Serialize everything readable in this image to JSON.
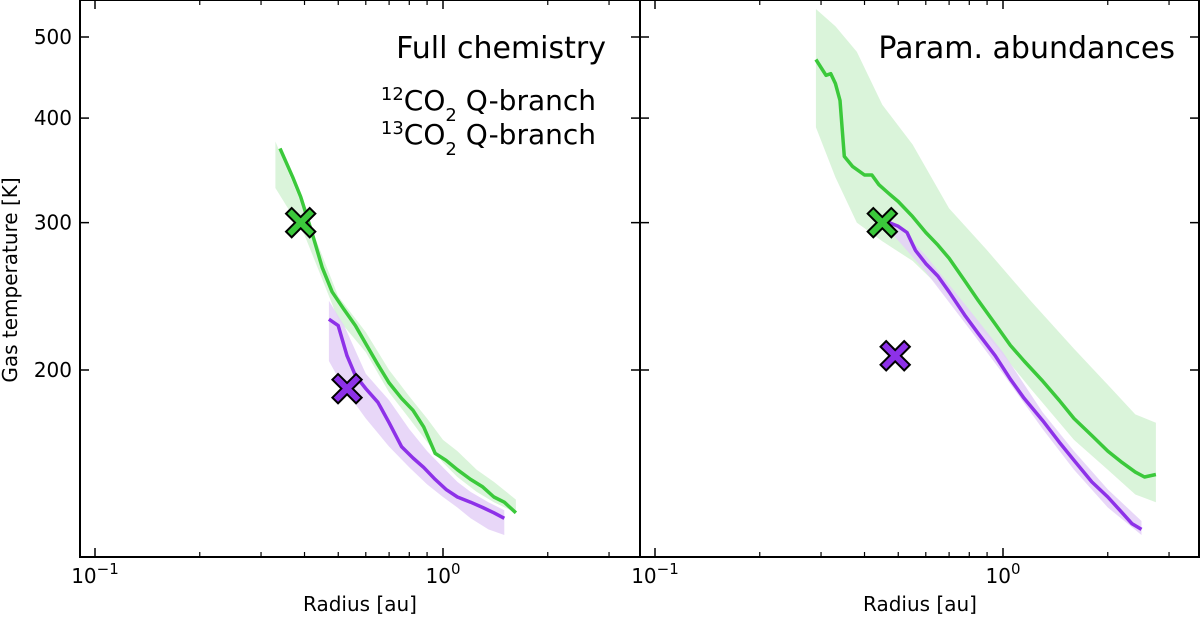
{
  "colors": {
    "green": "#3bc93b",
    "purple": "#8d31e8",
    "green_fill": "#d3f2d3",
    "purple_fill": "#e4d0f7"
  },
  "chart_data": [
    {
      "type": "line",
      "title": "Full chemistry",
      "xlabel": "Radius [au]",
      "ylabel": "Gas temperature [K]",
      "xscale": "log",
      "yscale": "log",
      "xlim": [
        0.09,
        3.8
      ],
      "ylim": [
        118,
        540
      ],
      "xticks": [
        {
          "value": 0.1,
          "base": "10",
          "exp": "−1"
        },
        {
          "value": 1.0,
          "base": "10",
          "exp": "0"
        }
      ],
      "yticks": [
        {
          "value": 200,
          "label": "200"
        },
        {
          "value": 300,
          "label": "300"
        },
        {
          "value": 400,
          "label": "400"
        },
        {
          "value": 500,
          "label": "500"
        }
      ],
      "legend": {
        "placement": "top-right",
        "entries": [
          {
            "iso": "12",
            "mol": "CO",
            "sub": "2",
            "rest": " Q-branch",
            "color": "#3bc93b"
          },
          {
            "iso": "13",
            "mol": "CO",
            "sub": "2",
            "rest": " Q-branch",
            "color": "#8d31e8"
          }
        ]
      },
      "series": [
        {
          "name": "12CO2 Q-branch",
          "color": "#3bc93b",
          "x": [
            0.34,
            0.37,
            0.39,
            0.42,
            0.45,
            0.48,
            0.52,
            0.56,
            0.6,
            0.65,
            0.7,
            0.76,
            0.82,
            0.88,
            0.95,
            1.02,
            1.1,
            1.2,
            1.3,
            1.4,
            1.5,
            1.62
          ],
          "y": [
            368,
            340,
            322,
            292,
            265,
            248,
            236,
            226,
            215,
            203,
            193,
            185,
            179,
            171,
            159,
            156,
            152,
            148,
            145,
            141,
            139,
            135
          ],
          "band_x": [
            0.33,
            0.4,
            0.5,
            0.6,
            0.7,
            0.8,
            0.9,
            1.0,
            1.1,
            1.25,
            1.4,
            1.62
          ],
          "band_lo": [
            330,
            290,
            230,
            210,
            188,
            175,
            164,
            155,
            149,
            143,
            139,
            135
          ],
          "band_hi": [
            375,
            310,
            245,
            222,
            200,
            186,
            175,
            165,
            160,
            152,
            147,
            140
          ]
        },
        {
          "name": "13CO2 Q-branch",
          "color": "#8d31e8",
          "x": [
            0.47,
            0.5,
            0.53,
            0.56,
            0.6,
            0.65,
            0.7,
            0.76,
            0.82,
            0.88,
            0.95,
            1.02,
            1.1,
            1.2,
            1.3,
            1.4,
            1.5
          ],
          "y": [
            230,
            226,
            208,
            197,
            190,
            183,
            173,
            162,
            157,
            153,
            148,
            144,
            141,
            139,
            137,
            135,
            133
          ],
          "band_x": [
            0.47,
            0.52,
            0.6,
            0.7,
            0.8,
            0.9,
            1.0,
            1.1,
            1.2,
            1.35,
            1.5
          ],
          "band_lo": [
            205,
            190,
            175,
            162,
            153,
            146,
            141,
            137,
            133,
            129,
            127
          ],
          "band_hi": [
            242,
            226,
            198,
            184,
            170,
            160,
            153,
            147,
            143,
            139,
            136
          ]
        }
      ],
      "markers": [
        {
          "series": "12CO2 Q-branch",
          "x": 0.39,
          "y": 300,
          "shape": "X",
          "color": "#3bc93b"
        },
        {
          "series": "13CO2 Q-branch",
          "x": 0.53,
          "y": 190,
          "shape": "X",
          "color": "#8d31e8"
        }
      ]
    },
    {
      "type": "line",
      "title": "Param. abundances",
      "xlabel": "Radius [au]",
      "ylabel": "",
      "xscale": "log",
      "yscale": "log",
      "xlim": [
        0.09,
        3.8
      ],
      "ylim": [
        118,
        540
      ],
      "xticks": [
        {
          "value": 0.1,
          "base": "10",
          "exp": "−1"
        },
        {
          "value": 1.0,
          "base": "10",
          "exp": "0"
        }
      ],
      "yticks": [
        {
          "value": 200,
          "label": ""
        },
        {
          "value": 300,
          "label": ""
        },
        {
          "value": 400,
          "label": ""
        },
        {
          "value": 500,
          "label": ""
        }
      ],
      "series": [
        {
          "name": "12CO2 Q-branch",
          "color": "#3bc93b",
          "x": [
            0.29,
            0.31,
            0.32,
            0.33,
            0.34,
            0.35,
            0.37,
            0.4,
            0.42,
            0.44,
            0.47,
            0.5,
            0.55,
            0.6,
            0.65,
            0.7,
            0.78,
            0.85,
            0.95,
            1.05,
            1.15,
            1.3,
            1.45,
            1.6,
            1.8,
            2.0,
            2.2,
            2.4,
            2.55,
            2.75
          ],
          "y": [
            470,
            450,
            452,
            440,
            420,
            360,
            350,
            342,
            342,
            333,
            325,
            318,
            305,
            292,
            282,
            272,
            255,
            242,
            227,
            214,
            205,
            194,
            184,
            175,
            167,
            160,
            155,
            151,
            149,
            150
          ],
          "band_x": [
            0.29,
            0.33,
            0.38,
            0.45,
            0.55,
            0.7,
            0.9,
            1.2,
            1.6,
            2.0,
            2.4,
            2.75
          ],
          "band_lo": [
            390,
            340,
            300,
            285,
            270,
            245,
            220,
            190,
            165,
            152,
            142,
            139
          ],
          "band_hi": [
            540,
            515,
            480,
            415,
            372,
            312,
            278,
            242,
            212,
            192,
            177,
            173
          ]
        },
        {
          "name": "13CO2 Q-branch",
          "color": "#8d31e8",
          "x": [
            0.47,
            0.5,
            0.53,
            0.56,
            0.6,
            0.65,
            0.7,
            0.78,
            0.85,
            0.95,
            1.05,
            1.15,
            1.3,
            1.45,
            1.6,
            1.8,
            2.0,
            2.2,
            2.35,
            2.5
          ],
          "y": [
            300,
            297,
            292,
            278,
            268,
            259,
            248,
            232,
            221,
            208,
            195,
            185,
            174,
            164,
            156,
            147,
            141,
            135,
            131,
            129
          ],
          "band_x": [
            0.47,
            0.6,
            0.8,
            1.0,
            1.3,
            1.6,
            2.0,
            2.5
          ],
          "band_lo": [
            294,
            262,
            224,
            198,
            170,
            152,
            137,
            127
          ],
          "band_hi": [
            304,
            274,
            236,
            210,
            178,
            160,
            144,
            132
          ]
        }
      ],
      "markers": [
        {
          "series": "12CO2 Q-branch",
          "x": 0.45,
          "y": 300,
          "shape": "X",
          "color": "#3bc93b"
        },
        {
          "series": "13CO2 Q-branch",
          "x": 0.49,
          "y": 208,
          "shape": "X",
          "color": "#8d31e8"
        }
      ]
    }
  ]
}
